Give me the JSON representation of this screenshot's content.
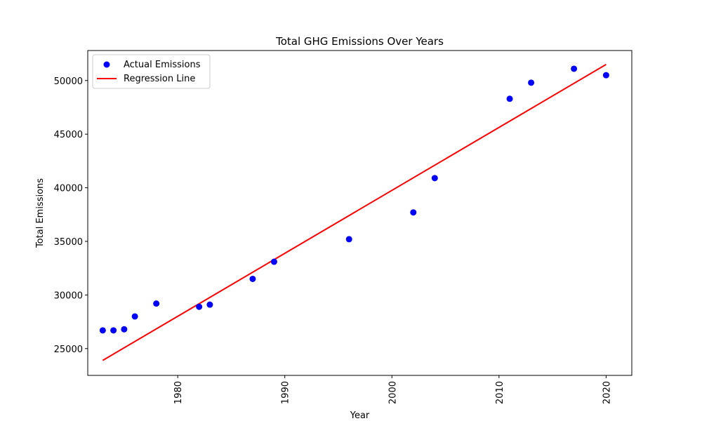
{
  "chart_data": {
    "type": "scatter",
    "title": "Total GHG Emissions Over Years",
    "xlabel": "Year",
    "ylabel": "Total Emissions",
    "xlim": [
      1971.6,
      2022.4
    ],
    "ylim": [
      22500,
      52800
    ],
    "xticks": [
      1980,
      1990,
      2000,
      2010,
      2020
    ],
    "yticks": [
      25000,
      30000,
      35000,
      40000,
      45000,
      50000
    ],
    "grid": false,
    "legend_position": "top-left",
    "series": [
      {
        "name": "Actual Emissions",
        "kind": "scatter",
        "color": "#0000ff",
        "x": [
          1973,
          1974,
          1975,
          1976,
          1978,
          1982,
          1983,
          1987,
          1989,
          1996,
          2002,
          2004,
          2011,
          2013,
          2017,
          2020
        ],
        "y": [
          26700,
          26700,
          26800,
          28000,
          29200,
          28900,
          29100,
          31500,
          33100,
          35200,
          37700,
          40900,
          48300,
          49800,
          51100,
          50500
        ]
      },
      {
        "name": "Regression Line",
        "kind": "line",
        "color": "#ff0000",
        "x": [
          1973,
          2020
        ],
        "y": [
          23900,
          51500
        ]
      }
    ]
  }
}
